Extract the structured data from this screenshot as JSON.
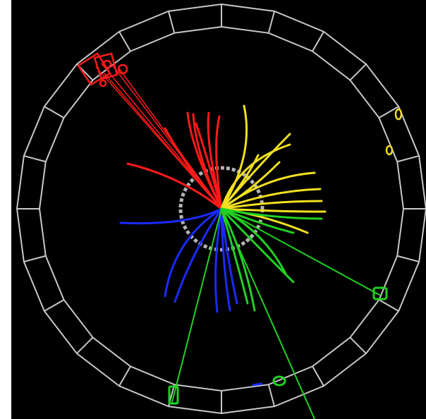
{
  "display": {
    "background_color": "#000000",
    "detector_color": "#c8c8c8",
    "inner_detector_color": "#b4b4b4"
  },
  "detector": {
    "segment_count": 24
  },
  "jets": [
    {
      "name": "red-jet",
      "color": "#ff1a1a"
    },
    {
      "name": "yellow-jet",
      "color": "#f0e020"
    },
    {
      "name": "blue-jet",
      "color": "#1a2aff"
    },
    {
      "name": "green-jet",
      "color": "#22d022"
    }
  ]
}
